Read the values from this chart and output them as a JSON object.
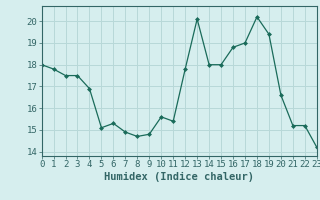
{
  "xlabel": "Humidex (Indice chaleur)",
  "x": [
    0,
    1,
    2,
    3,
    4,
    5,
    6,
    7,
    8,
    9,
    10,
    11,
    12,
    13,
    14,
    15,
    16,
    17,
    18,
    19,
    20,
    21,
    22,
    23
  ],
  "y": [
    18.0,
    17.8,
    17.5,
    17.5,
    16.9,
    15.1,
    15.3,
    14.9,
    14.7,
    14.8,
    15.6,
    15.4,
    17.8,
    20.1,
    18.0,
    18.0,
    18.8,
    19.0,
    20.2,
    19.4,
    16.6,
    15.2,
    15.2,
    14.2
  ],
  "line_color": "#1a6b5a",
  "marker": "D",
  "marker_size": 2.5,
  "background_color": "#d6eeee",
  "grid_color": "#b8d8d8",
  "ylim": [
    13.8,
    20.7
  ],
  "yticks": [
    14,
    15,
    16,
    17,
    18,
    19,
    20
  ],
  "xlim": [
    0,
    23
  ],
  "xticks": [
    0,
    1,
    2,
    3,
    4,
    5,
    6,
    7,
    8,
    9,
    10,
    11,
    12,
    13,
    14,
    15,
    16,
    17,
    18,
    19,
    20,
    21,
    22,
    23
  ],
  "tick_label_fontsize": 6.5,
  "xlabel_fontsize": 7.5,
  "spine_color": "#336666",
  "tick_color": "#336666"
}
